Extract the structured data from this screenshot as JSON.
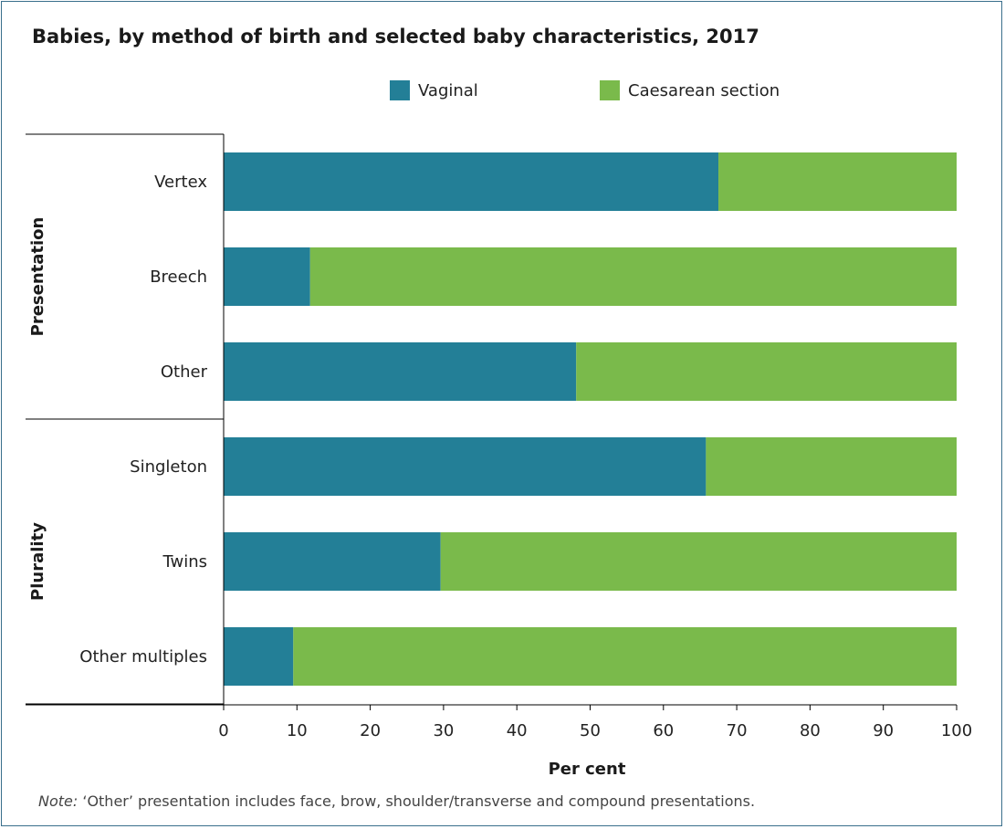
{
  "chart_data": {
    "type": "bar",
    "orientation": "horizontal",
    "stacked": true,
    "title": "Babies, by method of birth and selected baby characteristics, 2017",
    "xlabel": "Per cent",
    "xlim": [
      0,
      100
    ],
    "xticks": [
      "0",
      "10",
      "20",
      "30",
      "40",
      "50",
      "60",
      "70",
      "80",
      "90",
      "100"
    ],
    "groups": [
      {
        "label": "Presentation",
        "categories": [
          "Vertex",
          "Breech",
          "Other"
        ]
      },
      {
        "label": "Plurality",
        "categories": [
          "Singleton",
          "Twins",
          "Other multiples"
        ]
      }
    ],
    "categories": [
      "Vertex",
      "Breech",
      "Other",
      "Singleton",
      "Twins",
      "Other multiples"
    ],
    "series": [
      {
        "name": "Vaginal",
        "color": "#237f97",
        "values": [
          67.5,
          11.8,
          48.1,
          65.8,
          29.6,
          9.5
        ]
      },
      {
        "name": "Caesarean section",
        "color": "#7aba4b",
        "values": [
          32.5,
          88.2,
          51.9,
          34.2,
          70.4,
          90.5
        ]
      }
    ],
    "legend_position": "top",
    "grid": false
  },
  "note": {
    "label": "Note:",
    "text": " ‘Other’ presentation includes face, brow, shoulder/transverse and compound presentations."
  }
}
